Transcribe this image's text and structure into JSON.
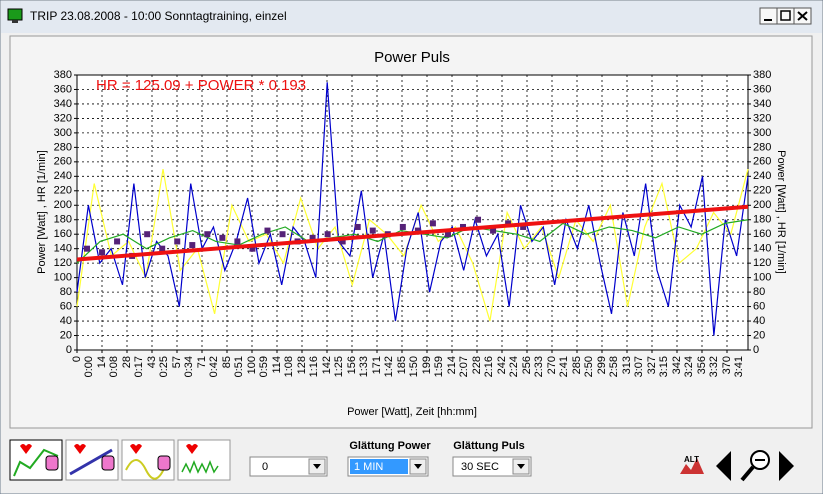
{
  "window": {
    "title": "TRIP 23.08.2008 - 10:00   Sonntagtraining, einzel"
  },
  "chart_data": {
    "type": "line",
    "title": "Power   Puls",
    "annotation": "HR =   125.09 + POWER * 0.193",
    "y_label": "Power [Watt] , HR [1/min]",
    "y2_label": "Power [Watt] , HR [1/min]",
    "x_label": "Power [Watt], Zeit [hh:mm]",
    "ylim": [
      0,
      380
    ],
    "yticks": [
      0,
      20,
      40,
      60,
      80,
      100,
      120,
      140,
      160,
      180,
      200,
      220,
      240,
      260,
      280,
      300,
      320,
      340,
      360,
      380
    ],
    "y2lim": [
      0,
      380
    ],
    "y2ticks": [
      0,
      20,
      40,
      60,
      80,
      100,
      120,
      140,
      160,
      180,
      200,
      220,
      240,
      260,
      280,
      300,
      320,
      340,
      360,
      380
    ],
    "grid": true,
    "x_tick_labels": [
      "0",
      "0:00",
      "14",
      "0:08",
      "28",
      "0:17",
      "43",
      "0:25",
      "57",
      "0:34",
      "71",
      "0:42",
      "85",
      "0:51",
      "100",
      "0:59",
      "114",
      "1:08",
      "128",
      "1:16",
      "142",
      "1:25",
      "156",
      "1:33",
      "171",
      "1:42",
      "185",
      "1:50",
      "199",
      "1:59",
      "214",
      "2:07",
      "228",
      "2:16",
      "242",
      "2:24",
      "256",
      "2:33",
      "270",
      "2:41",
      "285",
      "2:50",
      "299",
      "2:58",
      "313",
      "3:07",
      "327",
      "3:15",
      "342",
      "3:24",
      "356",
      "3:32",
      "370",
      "3:41"
    ],
    "series": [
      {
        "color": "#ffff33",
        "values": [
          60,
          230,
          130,
          150,
          100,
          250,
          110,
          140,
          50,
          200,
          150,
          160,
          120,
          210,
          140,
          170,
          90,
          180,
          160,
          130,
          200,
          150,
          170,
          120,
          40,
          190,
          140,
          170,
          100,
          180,
          150,
          200,
          60,
          170,
          230,
          120,
          140,
          190,
          160,
          250
        ]
      },
      {
        "color": "#0000cc",
        "values": [
          80,
          200,
          120,
          140,
          90,
          230,
          100,
          150,
          130,
          60,
          230,
          140,
          170,
          110,
          150,
          210,
          120,
          160,
          90,
          170,
          150,
          100,
          370,
          150,
          130,
          220,
          100,
          160,
          40,
          140,
          190,
          80,
          150,
          170,
          110,
          180,
          130,
          160,
          60,
          200,
          150,
          170,
          90,
          180,
          140,
          200,
          120,
          50,
          190,
          130,
          230,
          110,
          60,
          200,
          170,
          240,
          20,
          180,
          130,
          240
        ]
      },
      {
        "color": "#22aa22",
        "values": [
          120,
          150,
          160,
          140,
          155,
          165,
          150,
          145,
          160,
          170,
          150,
          155,
          160,
          150,
          165,
          160,
          155,
          170,
          165,
          160,
          150,
          175,
          160,
          170,
          165,
          155,
          170,
          160,
          175,
          180
        ]
      },
      {
        "color": "#552277",
        "marker": "square",
        "values": [
          140,
          135,
          150,
          130,
          160,
          140,
          150,
          145,
          160,
          155,
          150,
          140,
          165,
          160,
          150,
          155,
          160,
          150,
          170,
          165,
          160,
          170,
          165,
          175,
          160,
          170,
          180,
          165,
          175,
          170
        ]
      },
      {
        "color": "#ee1111",
        "values": [
          125,
          198
        ]
      }
    ]
  },
  "toolbar": {
    "power_smoothing_label": "Glättung Power",
    "pulse_smoothing_label": "Glättung Puls",
    "first_select": "0",
    "power_select": "1 MIN",
    "pulse_select": "30 SEC",
    "alt_icon": "ALT"
  }
}
